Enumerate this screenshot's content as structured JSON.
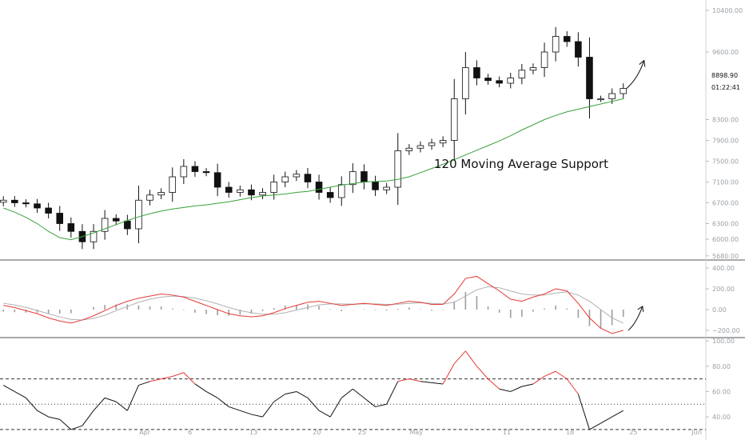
{
  "chart_data": {
    "type": "candlestick",
    "annotation": "120 Moving Average Support",
    "last_price": "8898.90",
    "countdown": "01:22:41",
    "colors": {
      "candles": "#111111",
      "ma120": "#3aa03a",
      "macd": "#e53935",
      "signal": "#b0b0b0",
      "histogram": "#9e9e9e",
      "rsi": "#111111",
      "rsi_overbought": "#e53935",
      "axis_text": "#9aa0a6",
      "divider": "#555555"
    },
    "x_axis": {
      "domain_days": [
        0,
        78
      ],
      "ticks": [
        {
          "day": 16,
          "label": "Apr"
        },
        {
          "day": 21,
          "label": "6"
        },
        {
          "day": 28,
          "label": "13"
        },
        {
          "day": 35,
          "label": "20"
        },
        {
          "day": 40,
          "label": "25"
        },
        {
          "day": 46,
          "label": "May"
        },
        {
          "day": 56,
          "label": "11"
        },
        {
          "day": 63,
          "label": "18"
        },
        {
          "day": 70,
          "label": "25"
        },
        {
          "day": 77,
          "label": "Jun"
        },
        {
          "day": 84,
          "label": "8"
        }
      ]
    },
    "price_panel": {
      "ylim": [
        5600,
        10600
      ],
      "y_ticks": [
        {
          "value": 10400,
          "label": "10400.00"
        },
        {
          "value": 9600,
          "label": "9600.00"
        },
        {
          "value": 8300,
          "label": "8300.00"
        },
        {
          "value": 7900,
          "label": "7900.00"
        },
        {
          "value": 7500,
          "label": "7500.00"
        },
        {
          "value": 7100,
          "label": "7100.00"
        },
        {
          "value": 6700,
          "label": "6700.00"
        },
        {
          "value": 6300,
          "label": "6300.00"
        },
        {
          "value": 6000,
          "label": "6000.00"
        },
        {
          "value": 5680,
          "label": "5680.00"
        }
      ],
      "price_close": [
        6750,
        6700,
        6680,
        6600,
        6500,
        6300,
        6150,
        5950,
        6150,
        6400,
        6350,
        6200,
        6750,
        6850,
        6900,
        7200,
        7400,
        7300,
        7280,
        7000,
        6900,
        6950,
        6850,
        6900,
        7100,
        7200,
        7250,
        7100,
        6900,
        6800,
        7050,
        7300,
        7100,
        6950,
        7000,
        7700,
        7750,
        7800,
        7850,
        7900,
        8700,
        9300,
        9100,
        9050,
        9000,
        9100,
        9250,
        9300,
        9600,
        9900,
        9800,
        9500,
        8700,
        8700,
        8800,
        8898.9
      ],
      "ma120": [
        6600,
        6520,
        6420,
        6300,
        6150,
        6030,
        5990,
        6050,
        6120,
        6200,
        6280,
        6360,
        6430,
        6490,
        6540,
        6580,
        6610,
        6640,
        6660,
        6690,
        6720,
        6760,
        6800,
        6830,
        6850,
        6870,
        6900,
        6920,
        6960,
        7000,
        7040,
        7070,
        7100,
        7110,
        7120,
        7150,
        7200,
        7280,
        7360,
        7440,
        7530,
        7620,
        7710,
        7800,
        7890,
        7990,
        8100,
        8200,
        8300,
        8380,
        8450,
        8500,
        8550,
        8600,
        8650,
        8700
      ]
    },
    "macd_panel": {
      "ylim": [
        -270,
        470
      ],
      "y_ticks": [
        {
          "value": 400,
          "label": "400.00"
        },
        {
          "value": 200,
          "label": "200.00"
        },
        {
          "value": 0,
          "label": "0.00"
        },
        {
          "value": -200,
          "label": "−200.00"
        }
      ],
      "macd": [
        40,
        20,
        -10,
        -40,
        -80,
        -110,
        -130,
        -100,
        -60,
        -10,
        40,
        80,
        110,
        130,
        150,
        140,
        120,
        80,
        40,
        0,
        -40,
        -60,
        -70,
        -60,
        -30,
        10,
        40,
        70,
        80,
        60,
        40,
        50,
        60,
        50,
        40,
        60,
        80,
        70,
        50,
        50,
        150,
        300,
        320,
        250,
        180,
        100,
        80,
        120,
        150,
        200,
        180,
        60,
        -80,
        -180,
        -230,
        -200
      ],
      "signal": [
        60,
        45,
        20,
        -10,
        -40,
        -70,
        -95,
        -100,
        -85,
        -55,
        -10,
        30,
        70,
        100,
        120,
        130,
        125,
        110,
        85,
        55,
        20,
        -10,
        -30,
        -45,
        -45,
        -30,
        -5,
        20,
        45,
        55,
        55,
        52,
        55,
        55,
        50,
        52,
        60,
        65,
        60,
        55,
        70,
        130,
        190,
        220,
        210,
        180,
        150,
        140,
        140,
        160,
        170,
        140,
        80,
        0,
        -80,
        -130
      ],
      "histogram": [
        -20,
        -25,
        -30,
        -30,
        -40,
        -40,
        -35,
        0,
        25,
        45,
        50,
        50,
        40,
        30,
        30,
        10,
        -5,
        -30,
        -45,
        -55,
        -60,
        -50,
        -40,
        -15,
        15,
        40,
        45,
        50,
        35,
        5,
        -15,
        -2,
        5,
        -5,
        -10,
        8,
        20,
        5,
        -10,
        -5,
        80,
        170,
        130,
        30,
        -30,
        -80,
        -70,
        -20,
        10,
        40,
        10,
        -80,
        -160,
        -180,
        -150,
        -70
      ]
    },
    "rsi_panel": {
      "ylim": [
        23,
        102
      ],
      "y_ticks": [
        {
          "value": 100,
          "label": "100.00"
        },
        {
          "value": 80,
          "label": "80.00"
        },
        {
          "value": 60,
          "label": "60.00"
        },
        {
          "value": 40,
          "label": "40.00"
        }
      ],
      "levels": [
        70,
        50,
        30
      ],
      "rsi": [
        65,
        60,
        55,
        45,
        40,
        38,
        30,
        33,
        45,
        55,
        52,
        45,
        65,
        68,
        70,
        72,
        75,
        66,
        60,
        55,
        48,
        45,
        42,
        40,
        52,
        58,
        60,
        55,
        45,
        40,
        55,
        62,
        55,
        48,
        50,
        68,
        70,
        68,
        67,
        66,
        82,
        92,
        80,
        70,
        62,
        60,
        64,
        66,
        72,
        76,
        70,
        58,
        30,
        35,
        40,
        45
      ]
    }
  }
}
